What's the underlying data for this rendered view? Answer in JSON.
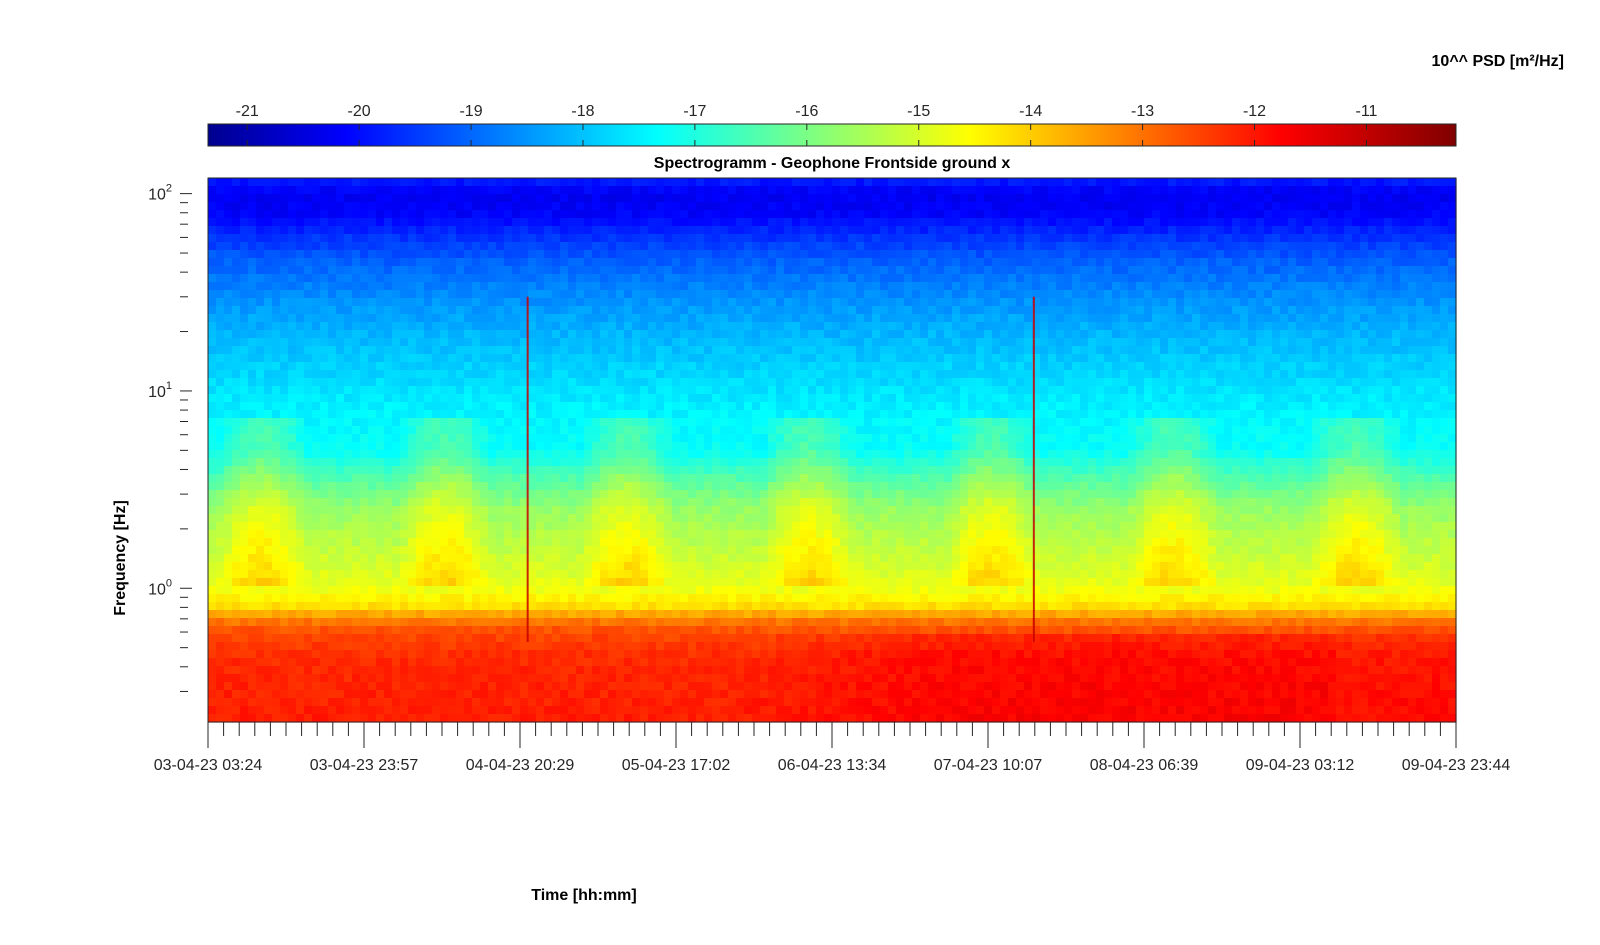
{
  "chart_data": {
    "type": "heatmap",
    "title": "Spectrogramm - Geophone Frontside ground x",
    "xlabel": "Time [hh:mm]",
    "ylabel": "Frequency [Hz]",
    "colorbar_label": "10^^ PSD [m²/Hz]",
    "colorbar_ticks": [
      "-21",
      "-20",
      "-19",
      "-18",
      "-17",
      "-16",
      "-15",
      "-14",
      "-13",
      "-12",
      "-11"
    ],
    "colorbar_range": [
      -21.35,
      -10.2
    ],
    "colormap": "jet",
    "x_tick_labels": [
      "03-04-23 03:24",
      "03-04-23 23:57",
      "04-04-23 20:29",
      "05-04-23 17:02",
      "06-04-23 13:34",
      "07-04-23 10:07",
      "08-04-23 06:39",
      "09-04-23 03:12",
      "09-04-23 23:44"
    ],
    "x_range_days": [
      0,
      6.8486
    ],
    "y_scale": "log",
    "y_range": [
      0.21,
      120
    ],
    "y_tick_labels": [
      {
        "base": "10",
        "exp": "0",
        "value": 1
      },
      {
        "base": "10",
        "exp": "1",
        "value": 10
      },
      {
        "base": "10",
        "exp": "2",
        "value": 100
      }
    ],
    "grid": false,
    "freq_profile_log10psd": [
      {
        "f": 0.21,
        "v": -11.9
      },
      {
        "f": 0.3,
        "v": -11.95
      },
      {
        "f": 0.45,
        "v": -12.05
      },
      {
        "f": 0.6,
        "v": -12.4
      },
      {
        "f": 0.7,
        "v": -13.0
      },
      {
        "f": 0.8,
        "v": -14.0
      },
      {
        "f": 1.0,
        "v": -14.6
      },
      {
        "f": 1.5,
        "v": -15.0
      },
      {
        "f": 2.5,
        "v": -15.5
      },
      {
        "f": 3.5,
        "v": -16.2
      },
      {
        "f": 5.0,
        "v": -17.1
      },
      {
        "f": 8.0,
        "v": -17.3
      },
      {
        "f": 12,
        "v": -17.6
      },
      {
        "f": 20,
        "v": -18.0
      },
      {
        "f": 30,
        "v": -18.4
      },
      {
        "f": 45,
        "v": -18.9
      },
      {
        "f": 60,
        "v": -19.4
      },
      {
        "f": 80,
        "v": -20.0
      },
      {
        "f": 100,
        "v": -20.1
      },
      {
        "f": 120,
        "v": -19.6
      }
    ],
    "events": [
      {
        "time": "04-04-23 21:30",
        "note": "narrow spike"
      },
      {
        "time": "07-04-23 16:10",
        "note": "narrow spike"
      }
    ]
  }
}
